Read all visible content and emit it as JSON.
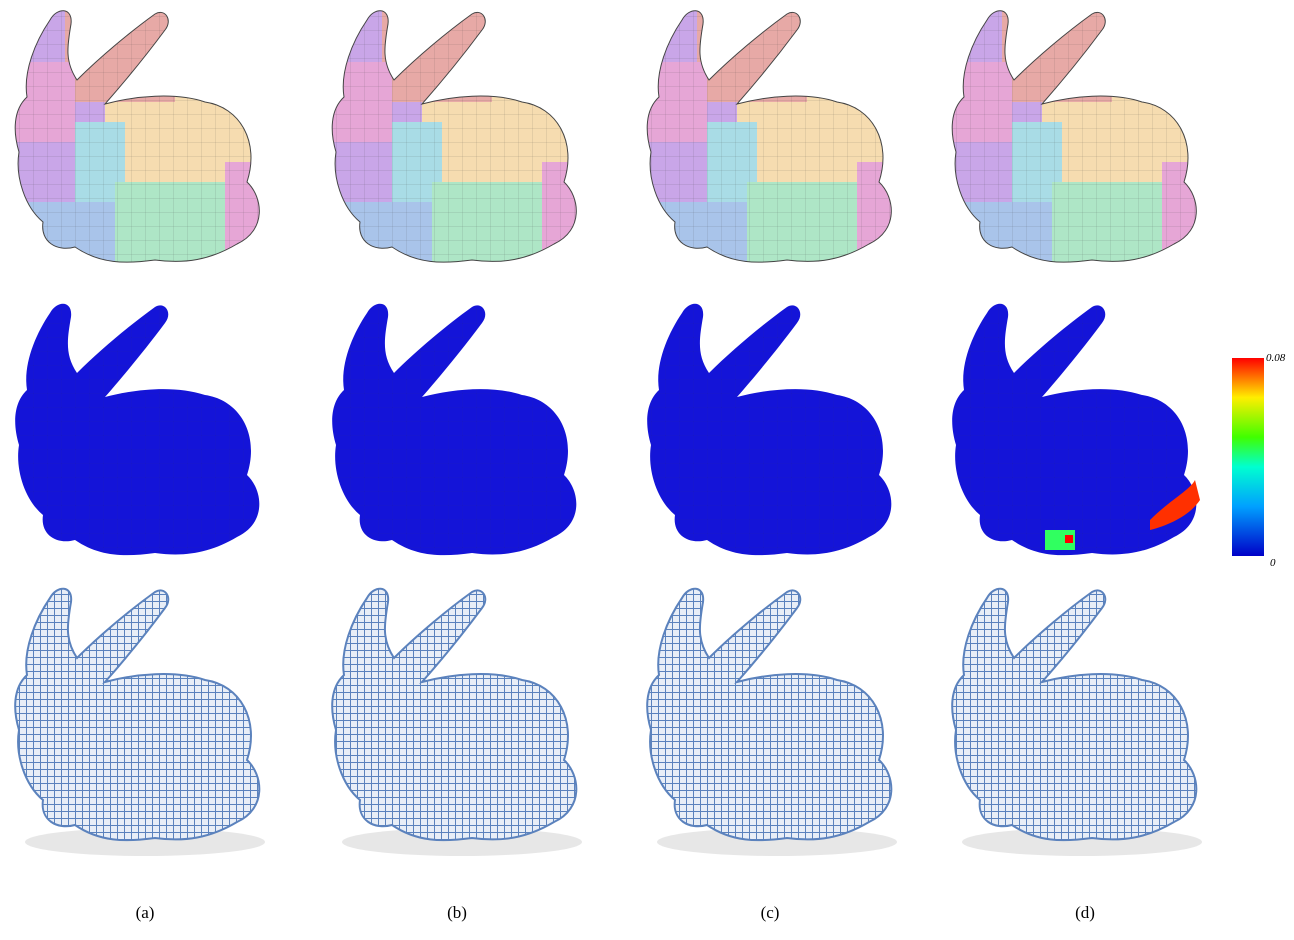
{
  "figure": {
    "panels": [
      {
        "label": "(a)"
      },
      {
        "label": "(b)"
      },
      {
        "label": "(c)"
      },
      {
        "label": "(d)"
      }
    ],
    "colorbar": {
      "max": 0.08,
      "min": 0
    }
  }
}
